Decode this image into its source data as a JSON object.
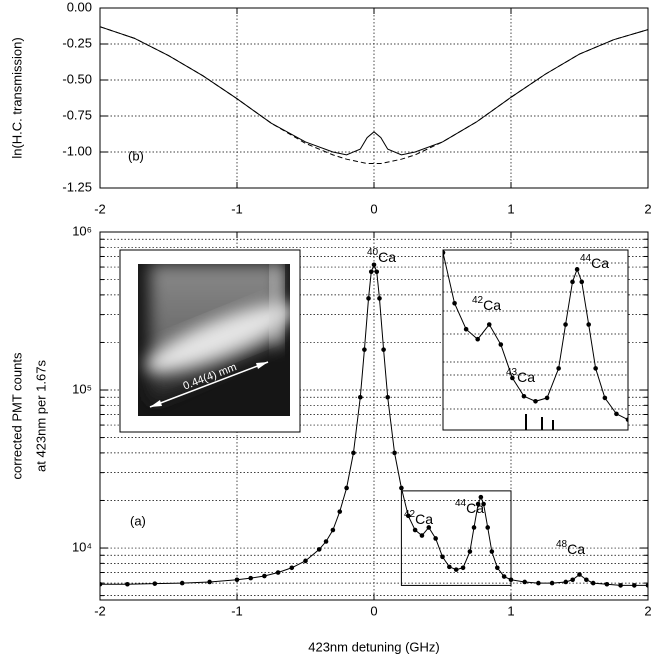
{
  "chart_data": [
    {
      "type": "line",
      "ylabel": "ln(H.C. transmission)",
      "panel_label": "(b)",
      "x": [
        -2,
        -1.75,
        -1.5,
        -1.25,
        -1,
        -0.75,
        -0.5,
        -0.3,
        -0.2,
        -0.1,
        -0.05,
        0,
        0.05,
        0.1,
        0.2,
        0.3,
        0.5,
        0.75,
        1,
        1.25,
        1.5,
        1.75,
        2
      ],
      "series": [
        {
          "color": "#000000",
          "style": "solid",
          "values": [
            -0.13,
            -0.21,
            -0.33,
            -0.47,
            -0.63,
            -0.8,
            -0.93,
            -1.0,
            -1.02,
            -0.98,
            -0.9,
            -0.86,
            -0.9,
            -0.98,
            -1.02,
            -1.0,
            -0.93,
            -0.79,
            -0.62,
            -0.46,
            -0.32,
            -0.22,
            -0.15
          ]
        },
        {
          "color": "#000000",
          "style": "dashed",
          "values": [
            -0.13,
            -0.21,
            -0.33,
            -0.47,
            -0.63,
            -0.8,
            -0.94,
            -1.02,
            -1.05,
            -1.07,
            -1.08,
            -1.08,
            -1.08,
            -1.07,
            -1.05,
            -1.02,
            -0.93,
            -0.79,
            -0.62,
            -0.46,
            -0.32,
            -0.22,
            -0.15
          ]
        }
      ],
      "xlim": [
        -2,
        2
      ],
      "xticks": [
        -2,
        -1,
        0,
        1,
        2
      ],
      "ylim": [
        -1.25,
        0
      ],
      "yticks": [
        {
          "value": 0,
          "label": "0.00"
        },
        -0.25,
        {
          "value": -0.5,
          "label": "-0.50"
        },
        -0.75,
        {
          "value": -1,
          "label": "-1.00"
        },
        -1.25
      ],
      "grid": true
    },
    {
      "type": "line",
      "markers": true,
      "log_y": true,
      "ylabel": [
        "corrected PMT counts",
        "at 423nm per 1.67s"
      ],
      "xlabel": "423nm detuning (GHz)",
      "panel_label": "(a)",
      "x": [
        -2,
        -1.8,
        -1.6,
        -1.4,
        -1.2,
        -1,
        -0.9,
        -0.8,
        -0.7,
        -0.6,
        -0.5,
        -0.4,
        -0.35,
        -0.3,
        -0.25,
        -0.2,
        -0.15,
        -0.1,
        -0.07,
        -0.04,
        -0.02,
        0,
        0.02,
        0.04,
        0.07,
        0.1,
        0.15,
        0.2,
        0.25,
        0.3,
        0.35,
        0.4,
        0.45,
        0.5,
        0.55,
        0.6,
        0.65,
        0.7,
        0.73,
        0.76,
        0.78,
        0.8,
        0.83,
        0.86,
        0.9,
        0.95,
        1,
        1.1,
        1.2,
        1.3,
        1.4,
        1.45,
        1.5,
        1.55,
        1.6,
        1.7,
        1.8,
        1.9,
        2
      ],
      "series": [
        {
          "color": "#000000",
          "values": [
            5900,
            5900,
            5950,
            6000,
            6100,
            6300,
            6450,
            6650,
            7000,
            7500,
            8300,
            9800,
            11000,
            13000,
            17000,
            24000,
            40000,
            90000,
            180000,
            380000,
            560000,
            620000,
            560000,
            380000,
            180000,
            90000,
            40000,
            24000,
            16000,
            13000,
            12000,
            13500,
            11500,
            8800,
            7600,
            7300,
            7500,
            9500,
            13500,
            19000,
            21000,
            19000,
            13500,
            9500,
            7500,
            6600,
            6300,
            6100,
            6000,
            6000,
            6100,
            6300,
            6800,
            6300,
            6000,
            5900,
            5800,
            5800,
            5800
          ]
        }
      ],
      "xlim": [
        -2,
        2
      ],
      "xticks": [
        -2,
        -1,
        0,
        1,
        2
      ],
      "ylim": [
        4690,
        1000000
      ],
      "yticks": [
        {
          "value": 10000,
          "label": "10⁴"
        },
        {
          "value": 100000,
          "label": "10⁵"
        },
        {
          "value": 1000000,
          "label": "10⁶"
        }
      ],
      "yminor": [
        5000,
        6000,
        7000,
        8000,
        9000,
        20000,
        30000,
        40000,
        50000,
        60000,
        70000,
        80000,
        90000,
        200000,
        300000,
        400000,
        500000,
        600000,
        700000,
        800000,
        900000
      ],
      "grid": true,
      "annotations": [
        {
          "mass": "40",
          "element": "Ca"
        },
        {
          "mass": "42",
          "element": "Ca"
        },
        {
          "mass": "44",
          "element": "Ca"
        },
        {
          "mass": "48",
          "element": "Ca"
        }
      ],
      "zoom": {
        "xlim": [
          0.2,
          1.0
        ],
        "ylim": [
          5800,
          23000
        ]
      },
      "inset_annotations": [
        {
          "mass": "42",
          "element": "Ca"
        },
        {
          "mass": "43",
          "element": "Ca"
        },
        {
          "mass": "44",
          "element": "Ca"
        }
      ],
      "image_label": "0.44(4) mm"
    }
  ]
}
